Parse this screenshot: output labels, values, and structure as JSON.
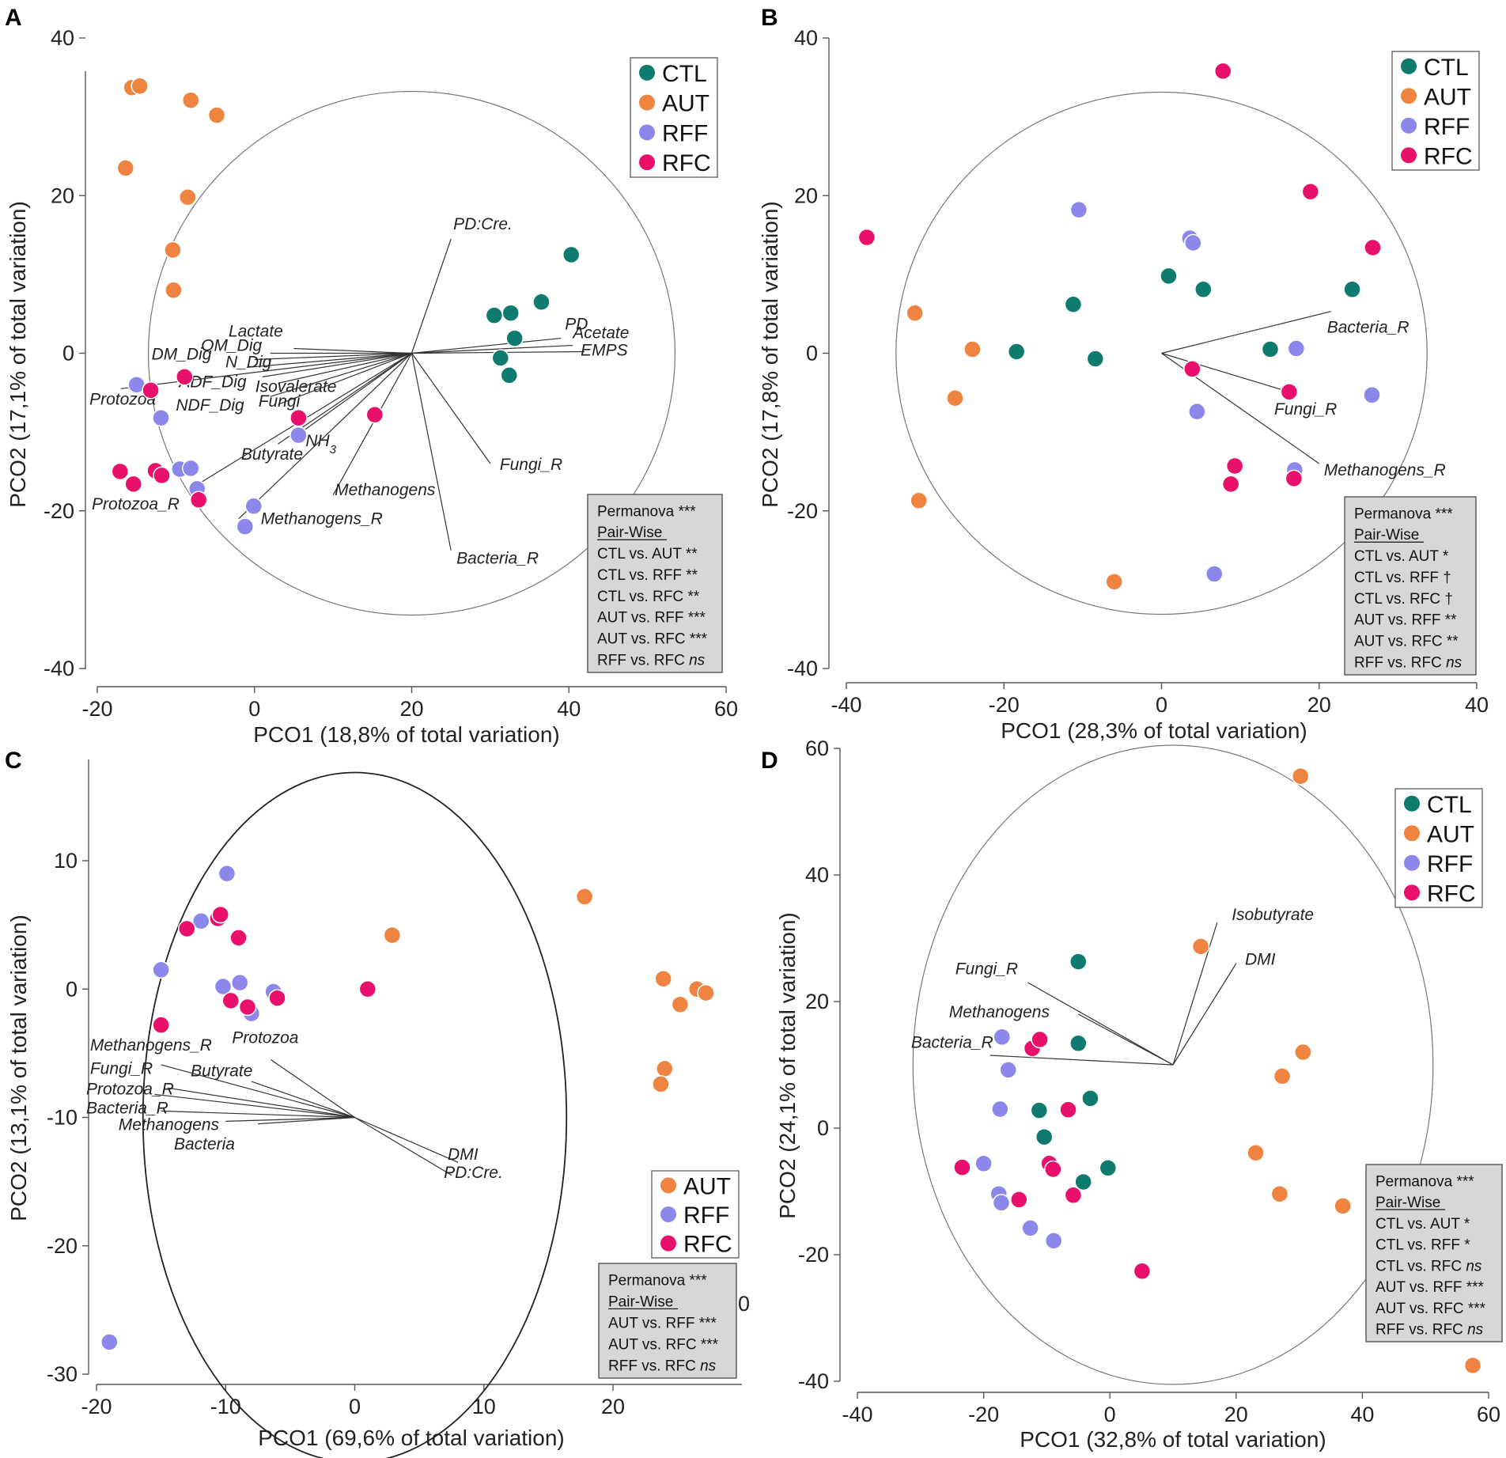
{
  "colors": {
    "CTL": "#0f7a6e",
    "AUT": "#ef8440",
    "RFF": "#8c87ea",
    "RFC": "#e8106a",
    "box": "#d7d7d7"
  },
  "chart_data": [
    {
      "type": "scatter",
      "letter": "A",
      "xlabel": "PCO1 (18,8% of total variation)",
      "ylabel": "PCO2 (17,1% of total variation)",
      "xlim": [
        -22,
        62
      ],
      "ylim": [
        -40,
        40
      ],
      "xticks": [
        -20,
        0,
        20,
        40,
        60
      ],
      "yticks": [
        -40,
        -20,
        0,
        20,
        40
      ],
      "circle": {
        "center": [
          20,
          0
        ],
        "radius_data_x": 33.5
      },
      "legend": [
        "CTL",
        "AUT",
        "RFF",
        "RFC"
      ],
      "series": {
        "CTL": [
          [
            40.3,
            12.5
          ],
          [
            30.5,
            4.8
          ],
          [
            32.6,
            5.1
          ],
          [
            36.5,
            6.5
          ],
          [
            33.1,
            1.9
          ],
          [
            31.3,
            -0.6
          ],
          [
            32.4,
            -2.8
          ]
        ],
        "AUT": [
          [
            -15.6,
            33.7
          ],
          [
            -14.6,
            33.9
          ],
          [
            -8.1,
            32.1
          ],
          [
            -4.8,
            30.2
          ],
          [
            -16.4,
            23.5
          ],
          [
            -8.5,
            19.8
          ],
          [
            -10.4,
            13.1
          ],
          [
            -10.3,
            8.0
          ]
        ],
        "RFF": [
          [
            -15.0,
            -4.0
          ],
          [
            -11.9,
            -8.2
          ],
          [
            -9.5,
            -14.7
          ],
          [
            -8.1,
            -14.6
          ],
          [
            -7.3,
            -17.2
          ],
          [
            -0.1,
            -19.4
          ],
          [
            -1.2,
            -22.0
          ],
          [
            5.6,
            -10.4
          ]
        ],
        "RFC": [
          [
            -13.2,
            -4.7
          ],
          [
            -8.9,
            -3.0
          ],
          [
            5.6,
            -8.2
          ],
          [
            15.3,
            -7.8
          ],
          [
            -17.1,
            -15.0
          ],
          [
            -15.4,
            -16.6
          ],
          [
            -12.6,
            -14.9
          ],
          [
            -11.8,
            -15.5
          ],
          [
            -7.1,
            -18.6
          ]
        ]
      },
      "vectors": [
        {
          "label": "PD:Cre.",
          "to": [
            25.0,
            14.5
          ],
          "at": [
            25.3,
            15.7
          ]
        },
        {
          "label": "PD",
          "to": [
            39.0,
            1.9
          ],
          "at": [
            39.5,
            3.0
          ]
        },
        {
          "label": "Acetate",
          "to": [
            40.5,
            1.0
          ],
          "at": [
            40.5,
            1.9
          ]
        },
        {
          "label": "EMPS",
          "to": [
            42.0,
            0.2
          ],
          "at": [
            41.5,
            -0.3
          ]
        },
        {
          "label": "Lactate",
          "to": [
            5.0,
            0.6
          ],
          "at": [
            -3.3,
            2.1
          ]
        },
        {
          "label": "OM_Dig",
          "to": [
            2.0,
            0.0
          ],
          "at": [
            -6.8,
            0.3
          ]
        },
        {
          "label": "DM_Dig",
          "to": [
            0.0,
            -0.8
          ],
          "at": [
            -13.1,
            -0.8
          ]
        },
        {
          "label": "N_Dig",
          "to": [
            -1.0,
            -1.8
          ],
          "at": [
            -3.7,
            -1.8
          ]
        },
        {
          "label": "ADF_Dig",
          "to": [
            1.0,
            -3.0
          ],
          "at": [
            -9.6,
            -4.3
          ]
        },
        {
          "label": "Isovalerate",
          "to": [
            3.0,
            -3.8
          ],
          "at": [
            0.1,
            -4.9
          ]
        },
        {
          "label": "Protozoa",
          "to": [
            -17.0,
            -4.5
          ],
          "at": [
            -21.0,
            -6.5
          ]
        },
        {
          "label": "NDF_Dig",
          "to": [
            2.0,
            -5.5
          ],
          "at": [
            -10.0,
            -7.3
          ]
        },
        {
          "label": "Fungi",
          "to": [
            3.0,
            -6.5
          ],
          "at": [
            0.5,
            -6.8
          ]
        },
        {
          "label": "NH3",
          "to": [
            6.0,
            -10.0
          ],
          "at": [
            6.5,
            -11.8
          ]
        },
        {
          "label": "Butyrate",
          "to": [
            3.0,
            -11.5
          ],
          "at": [
            -1.7,
            -13.5
          ]
        },
        {
          "label": "Methanogens",
          "to": [
            10.0,
            -18.0
          ],
          "at": [
            10.2,
            -18.0
          ]
        },
        {
          "label": "Protozoa_R",
          "to": [
            -7.0,
            -16.5
          ],
          "at": [
            -20.7,
            -19.8
          ]
        },
        {
          "label": "Methanogens_R",
          "to": [
            -2.0,
            -21.0
          ],
          "at": [
            0.8,
            -21.7
          ]
        },
        {
          "label": "Fungi_R",
          "to": [
            30.0,
            -14.0
          ],
          "at": [
            31.2,
            -14.8
          ]
        },
        {
          "label": "Bacteria_R",
          "to": [
            25.0,
            -25.0
          ],
          "at": [
            25.7,
            -26.7
          ]
        }
      ],
      "stats": {
        "lines": [
          "Permanova ***",
          "Pair-Wise",
          "CTL vs. AUT **",
          "CTL vs. RFF **",
          "CTL vs. RFC **",
          "AUT vs. RFF ***",
          "AUT vs. RFC ***",
          "RFF vs. RFC ns"
        ]
      }
    },
    {
      "type": "scatter",
      "letter": "B",
      "xlabel": "PCO1 (28,3% of total variation)",
      "ylabel": "PCO2 (17,8% of total variation)",
      "xlim": [
        -41,
        41
      ],
      "ylim": [
        -40,
        40
      ],
      "xticks": [
        -40,
        -20,
        0,
        20,
        40
      ],
      "yticks": [
        -40,
        -20,
        0,
        20,
        40
      ],
      "circle": {
        "center": [
          0,
          0
        ],
        "radius_data_x": 33.7
      },
      "legend": [
        "CTL",
        "AUT",
        "RFF",
        "RFC"
      ],
      "series": {
        "CTL": [
          [
            -18.4,
            0.2
          ],
          [
            -11.2,
            6.2
          ],
          [
            -8.4,
            -0.7
          ],
          [
            0.9,
            9.8
          ],
          [
            5.3,
            8.1
          ],
          [
            13.8,
            0.5
          ],
          [
            24.2,
            8.1
          ]
        ],
        "AUT": [
          [
            -31.3,
            5.1
          ],
          [
            -24.0,
            0.5
          ],
          [
            -26.2,
            -5.7
          ],
          [
            -30.8,
            -18.7
          ],
          [
            -6.0,
            -29.0
          ]
        ],
        "RFF": [
          [
            -10.5,
            18.2
          ],
          [
            3.6,
            14.6
          ],
          [
            4.0,
            14.0
          ],
          [
            4.5,
            -7.4
          ],
          [
            17.1,
            0.6
          ],
          [
            26.7,
            -5.3
          ],
          [
            16.9,
            -14.8
          ],
          [
            6.7,
            -28.0
          ]
        ],
        "RFC": [
          [
            -37.4,
            14.7
          ],
          [
            7.8,
            35.8
          ],
          [
            18.9,
            20.5
          ],
          [
            26.8,
            13.4
          ],
          [
            3.9,
            -2.0
          ],
          [
            16.2,
            -4.9
          ],
          [
            9.3,
            -14.3
          ],
          [
            8.8,
            -16.6
          ],
          [
            16.8,
            -15.9
          ]
        ]
      },
      "vectors": [
        {
          "label": "Bacteria_R",
          "to": [
            21.5,
            5.3
          ],
          "at": [
            21.0,
            2.6
          ]
        },
        {
          "label": "Fungi_R",
          "to": [
            15.5,
            -4.7
          ],
          "at": [
            14.3,
            -7.8
          ]
        },
        {
          "label": "Methanogens_R",
          "to": [
            20.0,
            -14.0
          ],
          "at": [
            20.6,
            -15.5
          ]
        }
      ],
      "stats": {
        "lines": [
          "Permanova ***",
          "Pair-Wise",
          "CTL vs. AUT *",
          "CTL vs. RFF †",
          "CTL vs. RFC †",
          "AUT vs. RFF **",
          "AUT vs. RFC **",
          "RFF vs. RFC ns"
        ]
      }
    },
    {
      "type": "scatter",
      "letter": "C",
      "xlabel": "PCO1 (69,6% of total variation)",
      "ylabel": "PCO2 (13,1% of total variation)",
      "xlim": [
        -20,
        30
      ],
      "ylim": [
        -30,
        17
      ],
      "xticks": [
        -20,
        -10,
        0,
        10,
        20
      ],
      "yticks": [
        -30,
        -20,
        -10,
        0,
        10
      ],
      "circle": {
        "center": [
          0,
          -10
        ],
        "radius_data_x": 16.4
      },
      "legend": [
        "AUT",
        "RFF",
        "RFC"
      ],
      "series": {
        "AUT": [
          [
            2.9,
            4.2
          ],
          [
            17.8,
            7.2
          ],
          [
            23.9,
            0.8
          ],
          [
            26.5,
            0.0
          ],
          [
            27.2,
            -0.3
          ],
          [
            25.2,
            -1.2
          ],
          [
            24.0,
            -6.2
          ],
          [
            23.7,
            -7.4
          ]
        ],
        "RFF": [
          [
            -9.9,
            9.0
          ],
          [
            -11.9,
            5.3
          ],
          [
            -15.0,
            1.5
          ],
          [
            -10.2,
            0.2
          ],
          [
            -8.9,
            0.5
          ],
          [
            -6.3,
            -0.2
          ],
          [
            -8.0,
            -1.9
          ],
          [
            -19.0,
            -27.5
          ]
        ],
        "RFC": [
          [
            -13.0,
            4.7
          ],
          [
            -10.6,
            5.5
          ],
          [
            -10.4,
            5.8
          ],
          [
            -9.0,
            4.0
          ],
          [
            -9.6,
            -0.9
          ],
          [
            -8.3,
            -1.4
          ],
          [
            -6.0,
            -0.7
          ],
          [
            1.0,
            0.0
          ],
          [
            -15.0,
            -2.8
          ]
        ]
      },
      "vectors": [
        {
          "label": "Protozoa",
          "to": [
            -6.5,
            -5.5
          ],
          "at": [
            -9.5,
            -4.2
          ]
        },
        {
          "label": "Methanogens_R",
          "to": [
            -15.0,
            -5.9
          ],
          "at": [
            -20.5,
            -4.8
          ]
        },
        {
          "label": "Butyrate",
          "to": [
            -8.0,
            -7.2
          ],
          "at": [
            -12.7,
            -6.8
          ]
        },
        {
          "label": "Fungi_R",
          "to": [
            -14.5,
            -7.7
          ],
          "at": [
            -20.5,
            -6.6
          ]
        },
        {
          "label": "Protozoa_R",
          "to": [
            -15.5,
            -8.2
          ],
          "at": [
            -20.8,
            -8.2
          ]
        },
        {
          "label": "Bacteria_R",
          "to": [
            -15.0,
            -9.5
          ],
          "at": [
            -20.8,
            -9.7
          ]
        },
        {
          "label": "Methanogens",
          "to": [
            -10.0,
            -10.3
          ],
          "at": [
            -18.3,
            -11.0
          ]
        },
        {
          "label": "Bacteria",
          "to": [
            -7.5,
            -10.5
          ],
          "at": [
            -14.0,
            -12.5
          ]
        },
        {
          "label": "DMI",
          "to": [
            8.0,
            -13.5
          ],
          "at": [
            7.2,
            -13.3
          ]
        },
        {
          "label": "PD:Cre.",
          "to": [
            7.5,
            -14.5
          ],
          "at": [
            6.9,
            -14.7
          ]
        }
      ],
      "stats": {
        "lines": [
          "Permanova ***",
          "Pair-Wise",
          "AUT vs. RFF ***",
          "AUT vs. RFC ***",
          "RFF vs. RFC ns"
        ]
      },
      "stray_label": "0"
    },
    {
      "type": "scatter",
      "letter": "D",
      "xlabel": "PCO1 (32,8% of total variation)",
      "ylabel": "PCO2 (24,1% of total variation)",
      "xlim": [
        -40,
        60
      ],
      "ylim": [
        -40,
        60
      ],
      "xticks": [
        -40,
        -20,
        0,
        20,
        40,
        60
      ],
      "yticks": [
        -40,
        -20,
        0,
        20,
        40,
        60
      ],
      "circle": {
        "center": [
          10,
          10
        ],
        "radius_data_x": 41.2
      },
      "legend": [
        "CTL",
        "AUT",
        "RFF",
        "RFC"
      ],
      "series": {
        "CTL": [
          [
            -5.0,
            26.3
          ],
          [
            -5.0,
            13.4
          ],
          [
            -3.1,
            4.7
          ],
          [
            -11.2,
            2.8
          ],
          [
            -10.4,
            -1.4
          ],
          [
            -0.3,
            -6.3
          ],
          [
            -4.2,
            -8.5
          ]
        ],
        "AUT": [
          [
            14.4,
            28.7
          ],
          [
            30.2,
            55.6
          ],
          [
            30.6,
            12.0
          ],
          [
            27.3,
            8.2
          ],
          [
            23.1,
            -3.9
          ],
          [
            26.9,
            -10.4
          ],
          [
            36.9,
            -12.3
          ],
          [
            57.5,
            -37.5
          ]
        ],
        "RFF": [
          [
            -17.1,
            14.4
          ],
          [
            -16.1,
            9.2
          ],
          [
            -17.4,
            3.0
          ],
          [
            -20.0,
            -5.6
          ],
          [
            -17.6,
            -10.4
          ],
          [
            -17.2,
            -11.8
          ],
          [
            -12.6,
            -15.8
          ],
          [
            -8.9,
            -17.8
          ]
        ],
        "RFC": [
          [
            -12.3,
            12.6
          ],
          [
            -11.1,
            14.0
          ],
          [
            -6.6,
            2.9
          ],
          [
            -23.4,
            -6.2
          ],
          [
            -14.4,
            -11.3
          ],
          [
            -9.6,
            -5.6
          ],
          [
            -9.0,
            -6.5
          ],
          [
            -5.8,
            -10.6
          ],
          [
            5.1,
            -22.6
          ]
        ]
      },
      "vectors": [
        {
          "label": "Isobutyrate",
          "to": [
            17.0,
            32.5
          ],
          "at": [
            19.3,
            32.9
          ]
        },
        {
          "label": "DMI",
          "to": [
            20.0,
            26.0
          ],
          "at": [
            21.4,
            25.8
          ]
        },
        {
          "label": "Fungi_R",
          "to": [
            -13.0,
            23.0
          ],
          "at": [
            -24.5,
            24.3
          ]
        },
        {
          "label": "Methanogens",
          "to": [
            -5.0,
            18.0
          ],
          "at": [
            -25.5,
            17.5
          ]
        },
        {
          "label": "Bacteria_R",
          "to": [
            -19.0,
            11.5
          ],
          "at": [
            -31.5,
            12.7
          ]
        }
      ],
      "stats": {
        "lines": [
          "Permanova ***",
          "Pair-Wise",
          "CTL vs. AUT *",
          "CTL vs. RFF *",
          "CTL vs. RFC ns",
          "AUT vs. RFF ***",
          "AUT vs. RFC ***",
          "RFF vs. RFC ns"
        ]
      }
    }
  ]
}
